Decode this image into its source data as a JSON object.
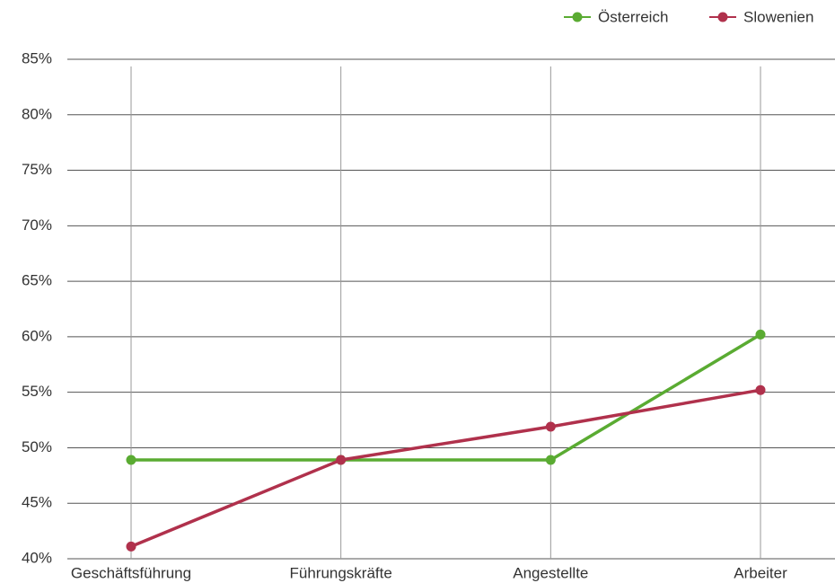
{
  "chart_data": {
    "type": "line",
    "categories": [
      "Geschäftsführung",
      "Führungskräfte",
      "Angestellte",
      "Arbeiter"
    ],
    "series": [
      {
        "name": "Österreich",
        "color": "#5aab32",
        "values": [
          48.9,
          48.9,
          48.9,
          60.2
        ]
      },
      {
        "name": "Slowenien",
        "color": "#b0314c",
        "values": [
          41.1,
          48.9,
          51.9,
          55.2
        ]
      }
    ],
    "ylim": [
      40,
      85
    ],
    "yticks": [
      {
        "value": 40,
        "label": "40%"
      },
      {
        "value": 45,
        "label": "45%"
      },
      {
        "value": 50,
        "label": "50%"
      },
      {
        "value": 55,
        "label": "55%"
      },
      {
        "value": 60,
        "label": "60%"
      },
      {
        "value": 65,
        "label": "65%"
      },
      {
        "value": 70,
        "label": "70%"
      },
      {
        "value": 75,
        "label": "75%"
      },
      {
        "value": 80,
        "label": "80%"
      },
      {
        "value": 85,
        "label": "85%"
      }
    ],
    "grid": true,
    "legend": "top-right"
  }
}
